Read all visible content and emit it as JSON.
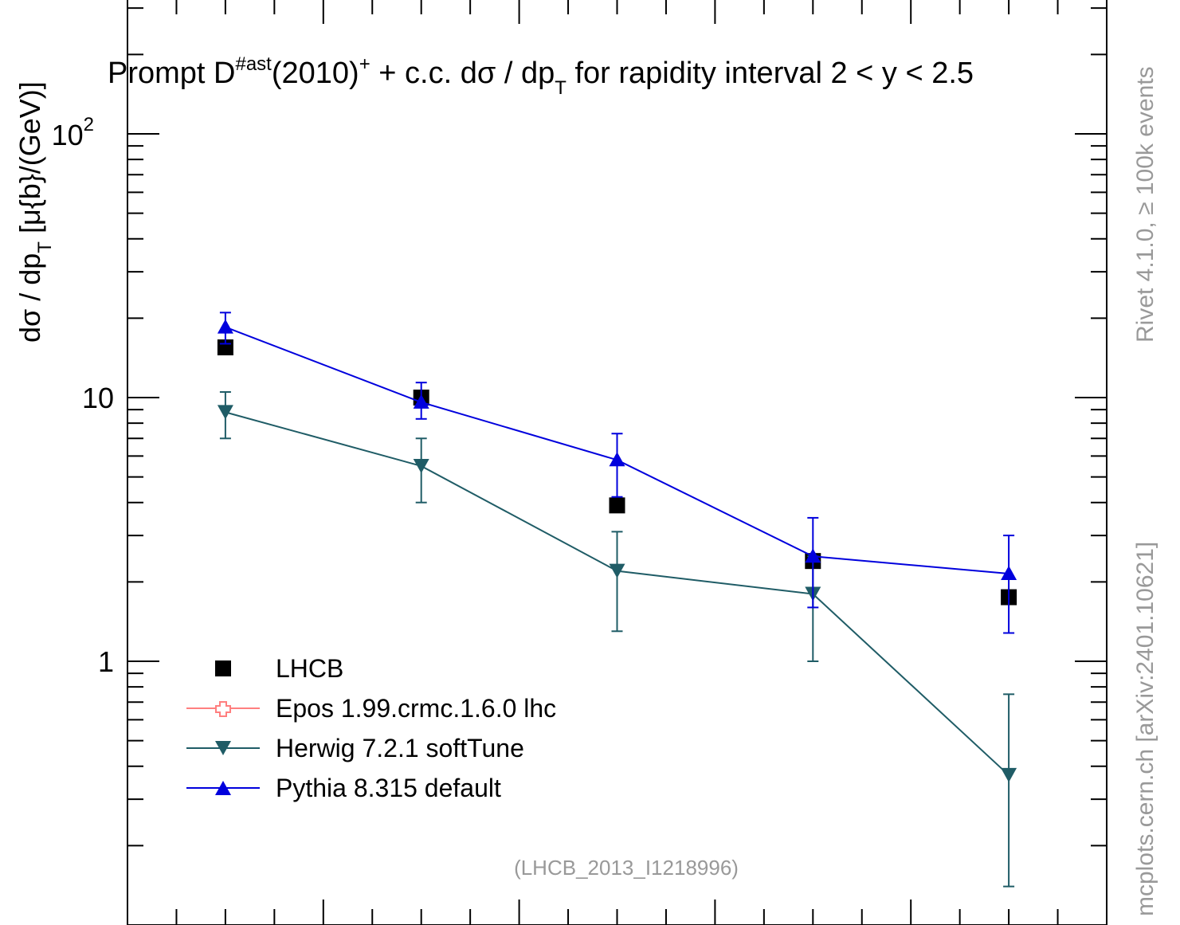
{
  "chart_data": {
    "type": "scatter",
    "title_parts": {
      "a": "Prompt D",
      "a_sup": "#ast",
      "b": "(2010)",
      "b_sup": "+",
      "c": " + c.c.  dσ / dp",
      "c_sub": "T",
      "d": " for rapidity interval 2 < y < 2.5"
    },
    "ylabel_parts": {
      "a": "dσ / dp",
      "a_sub": "T",
      "b": " [μ{b}/(GeV)]"
    },
    "yscale": "log",
    "ylim": [
      0.15,
      380
    ],
    "xlim": [
      0,
      10
    ],
    "y_tick_labels": {
      "one": "1",
      "ten": "10",
      "hundred_base": "10",
      "hundred_exp": "2"
    },
    "x_centers": [
      1,
      3,
      5,
      7,
      9
    ],
    "series": [
      {
        "name": "LHCB",
        "marker": "square",
        "color": "#000000",
        "y": [
          15.5,
          10.0,
          3.9,
          2.4,
          1.75
        ],
        "yerr": [
          [
            0,
            0,
            0,
            0,
            0
          ],
          [
            0,
            0,
            0,
            0,
            0
          ]
        ],
        "line": false
      },
      {
        "name": "Epos 1.99.crmc.1.6.0 lhc",
        "marker": "cross-open",
        "color": "#ff7f7f",
        "y": [],
        "line": true
      },
      {
        "name": "Herwig 7.2.1 softTune",
        "marker": "triangle-down",
        "color": "#1f5c66",
        "y": [
          8.8,
          5.5,
          2.2,
          1.8,
          0.37
        ],
        "yerr_low": [
          1.8,
          1.5,
          0.9,
          0.8,
          0.23
        ],
        "yerr_high": [
          1.7,
          1.5,
          0.9,
          0.7,
          0.38
        ],
        "line": true
      },
      {
        "name": "Pythia 8.315 default",
        "marker": "triangle-up",
        "color": "#0000dd",
        "y": [
          18.5,
          9.6,
          5.8,
          2.5,
          2.15
        ],
        "yerr_low": [
          2.5,
          1.3,
          1.6,
          0.9,
          0.87
        ],
        "yerr_high": [
          2.5,
          1.8,
          1.5,
          1.0,
          0.85
        ],
        "line": true
      }
    ],
    "annotation": "(LHCB_2013_I1218996)",
    "side_text_top": "Rivet 4.1.0, ≥ 100k events",
    "side_text_bottom": "mcplots.cern.ch [arXiv:2401.10621]"
  }
}
